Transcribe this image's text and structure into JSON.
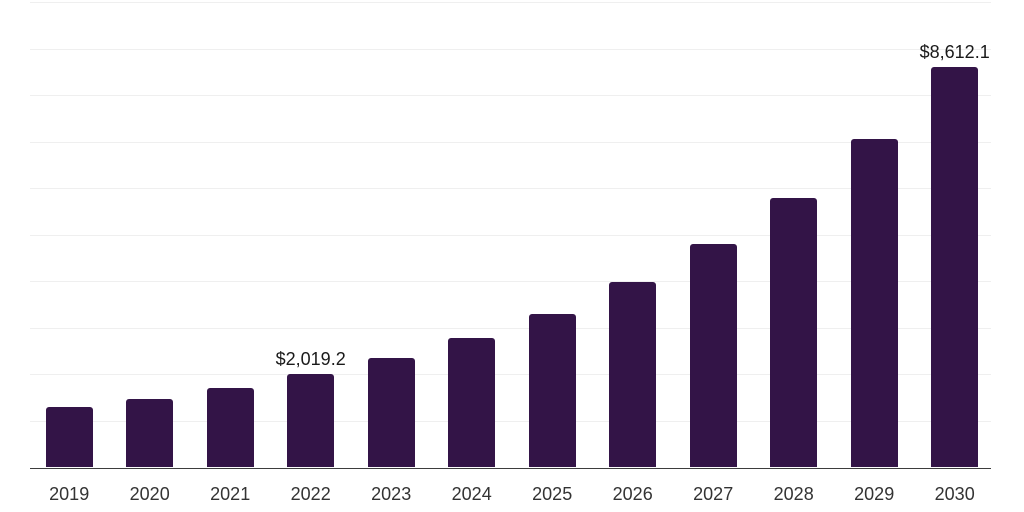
{
  "chart_data": {
    "type": "bar",
    "title": "",
    "xlabel": "",
    "ylabel": "",
    "categories": [
      "2019",
      "2020",
      "2021",
      "2022",
      "2023",
      "2024",
      "2025",
      "2026",
      "2027",
      "2028",
      "2029",
      "2030"
    ],
    "values": [
      1290,
      1480,
      1715,
      2019.2,
      2350,
      2780,
      3300,
      3980,
      4800,
      5780,
      7060,
      8612.1
    ],
    "data_labels": [
      {
        "category": "2022",
        "text": "$2,019.2"
      },
      {
        "category": "2030",
        "text": "$8,612.1"
      }
    ],
    "ylim": [
      0,
      10000
    ],
    "gridline_step": 1000,
    "grid": "horizontal-only",
    "y_tick_labels": "none",
    "legend": "none",
    "colors": {
      "bar": "#331447",
      "axis_line": "#3d3d3d",
      "gridline": "#efefef",
      "tick_label": "#333333",
      "data_label": "#1a1a1a",
      "background": "#ffffff"
    }
  }
}
